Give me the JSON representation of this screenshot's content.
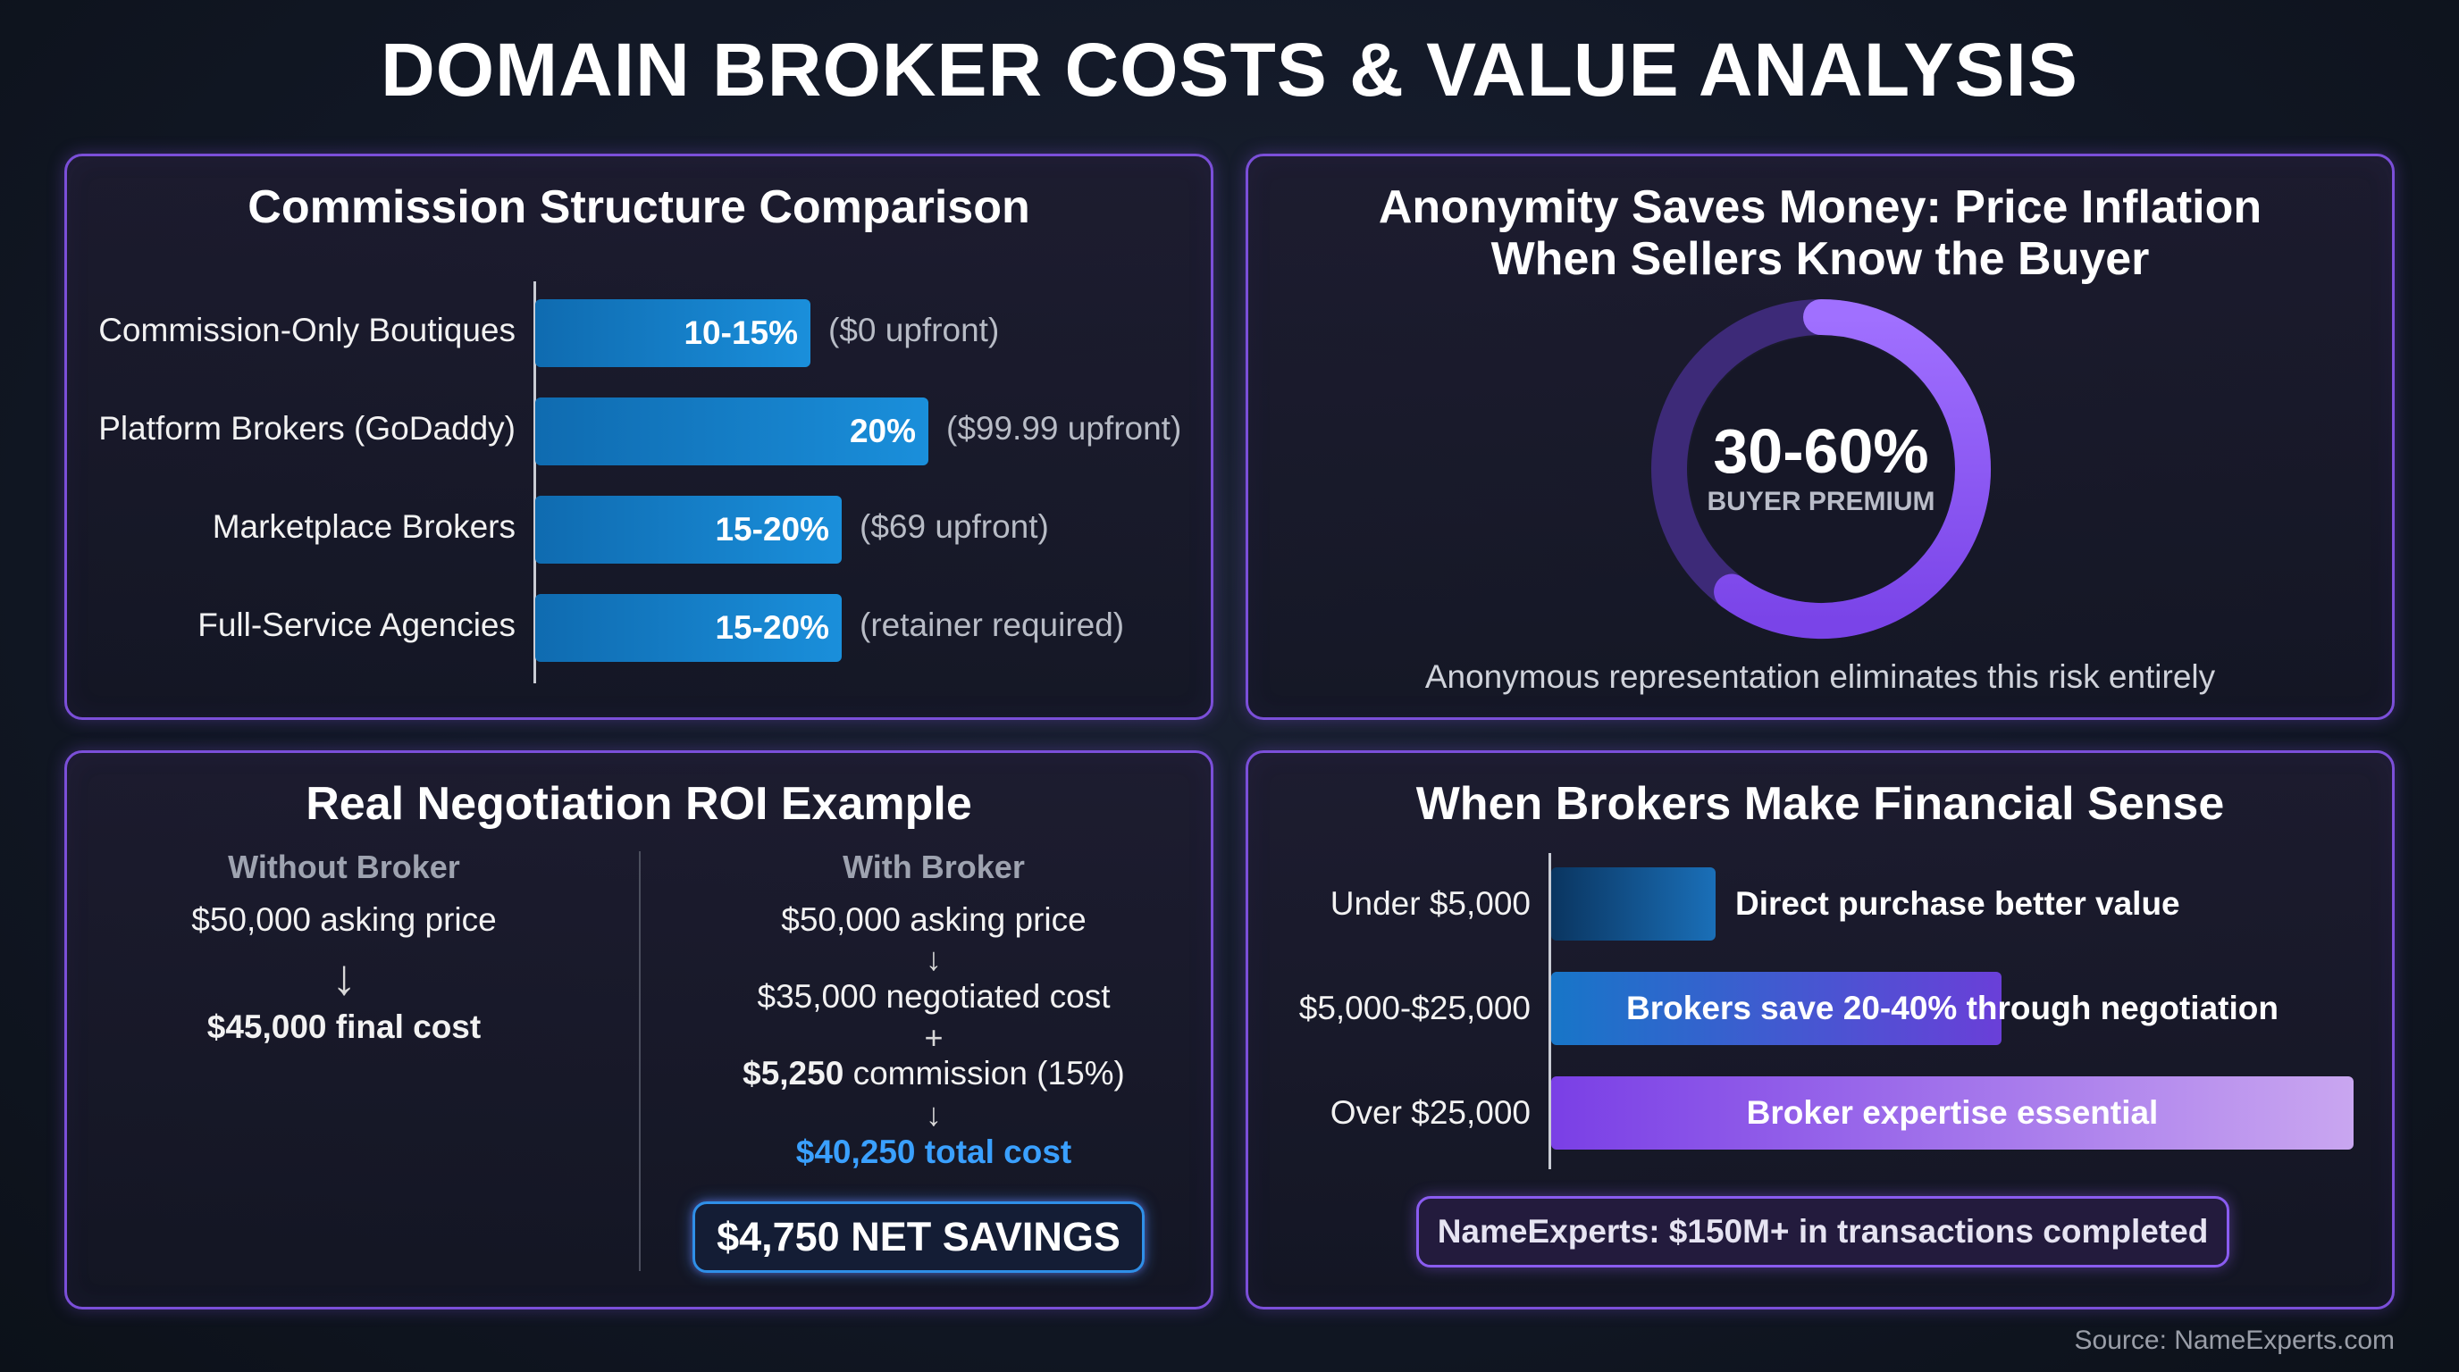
{
  "title": "DOMAIN BROKER COSTS & VALUE ANALYSIS",
  "commission": {
    "title": "Commission Structure Comparison",
    "rows": [
      {
        "label": "Commission-Only Boutiques",
        "value": "10-15%",
        "note": "($0 upfront)"
      },
      {
        "label": "Platform Brokers (GoDaddy)",
        "value": "20%",
        "note": "($99.99 upfront)"
      },
      {
        "label": "Marketplace Brokers",
        "value": "15-20%",
        "note": "($69 upfront)"
      },
      {
        "label": "Full-Service Agencies",
        "value": "15-20%",
        "note": "(retainer required)"
      }
    ]
  },
  "anonymity": {
    "title_line1": "Anonymity Saves Money: Price Inflation",
    "title_line2": "When Sellers Know the Buyer",
    "value": "30-60%",
    "sublabel": "BUYER PREMIUM",
    "caption": "Anonymous representation eliminates this risk entirely",
    "ring_colors": [
      "#9b6cf5",
      "#4a2f8f"
    ]
  },
  "roi": {
    "title": "Real Negotiation ROI Example",
    "without": {
      "heading": "Without Broker",
      "asking": "$50,000 asking price",
      "arrow": "↓",
      "final": "$45,000 final cost"
    },
    "with": {
      "heading": "With Broker",
      "asking": "$50,000 asking price",
      "arrow1": "↓",
      "negotiated": "$35,000 negotiated cost",
      "plus": "+",
      "commission_amount": "$5,250",
      "commission_text": " commission (15%)",
      "arrow2": "↓",
      "total_amount": "$40,250",
      "total_text": " total cost"
    },
    "savings": "$4,750 NET SAVINGS",
    "accent": "#3aa0ff"
  },
  "sense": {
    "title": "When Brokers Make Financial Sense",
    "rows": [
      {
        "label": "Under $5,000",
        "text": "Direct purchase better value"
      },
      {
        "label": "$5,000-$25,000",
        "text": "Brokers save 20-40% through negotiation"
      },
      {
        "label": "Over $25,000",
        "text": "Broker expertise essential"
      }
    ],
    "badge": "NameExperts: $150M+ in transactions completed"
  },
  "source": "Source: NameExperts.com",
  "chart_data": [
    {
      "type": "bar",
      "title": "Commission Structure Comparison",
      "categories": [
        "Commission-Only Boutiques",
        "Platform Brokers (GoDaddy)",
        "Marketplace Brokers",
        "Full-Service Agencies"
      ],
      "values": [
        15,
        20,
        20,
        20
      ],
      "value_labels": [
        "10-15%",
        "20%",
        "15-20%",
        "15-20%"
      ],
      "annotations": [
        "($0 upfront)",
        "($99.99 upfront)",
        "($69 upfront)",
        "(retainer required)"
      ],
      "orientation": "horizontal",
      "grid": false
    },
    {
      "type": "pie",
      "title": "Anonymity Saves Money: Price Inflation When Sellers Know the Buyer",
      "center_label": "30-60%",
      "center_sublabel": "BUYER PREMIUM",
      "values": [
        60,
        40
      ],
      "grid": false
    },
    {
      "type": "bar",
      "title": "When Brokers Make Financial Sense",
      "categories": [
        "Under $5,000",
        "$5,000-$25,000",
        "Over $25,000"
      ],
      "values": [
        1,
        2,
        4
      ],
      "value_labels": [
        "Direct purchase better value",
        "Brokers save 20-40% through negotiation",
        "Broker expertise essential"
      ],
      "orientation": "horizontal",
      "grid": false
    }
  ]
}
